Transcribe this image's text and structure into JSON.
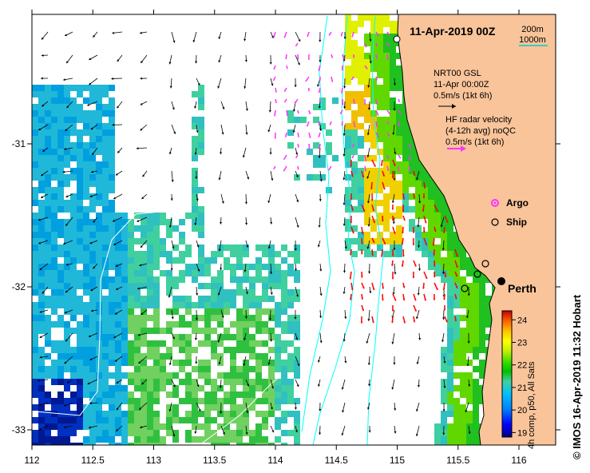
{
  "map": {
    "title": "11-Apr-2019 00Z",
    "credit": "© IMOS 16-Apr-2019 11:32 Hobart",
    "city": "Perth",
    "scale": {
      "short": "200m",
      "long": "1000m"
    },
    "model_block": [
      "NRT00 GSL",
      "11-Apr 00:00Z",
      "0.5m/s (1kt 6h)"
    ],
    "radar_block": [
      "HF radar velocity",
      "(4-12h avg) noQC",
      "0.5m/s (1kt 6h)"
    ],
    "legend": [
      {
        "label": "Argo",
        "color": "#ff33ff"
      },
      {
        "label": "Ship",
        "color": "#000000"
      }
    ],
    "x_ticks": [
      "112",
      "112.5",
      "113",
      "113.5",
      "114",
      "114.5",
      "115",
      "115.5",
      "116"
    ],
    "y_ticks": [
      "-31",
      "-32",
      "-33"
    ],
    "colorbar": {
      "label": "4h comp, p50, All Sats",
      "ticks": [
        "19",
        "20",
        "21",
        "22",
        "23",
        "24"
      ],
      "min": 18.8,
      "max": 24.4
    },
    "colors": {
      "land": "#f9c49a",
      "radar_arrow": "#ff0000",
      "model_arrow": "#000000",
      "argo": "#ff33ff",
      "isobath": "#00ffff"
    }
  }
}
